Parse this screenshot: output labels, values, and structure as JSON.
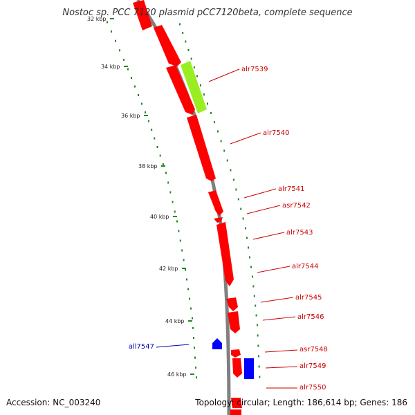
{
  "title": "Nostoc sp. PCC 7120 plasmid pCC7120beta, complete sequence",
  "footer": {
    "accession": "Accession: NC_003240",
    "summary": "Topology: circular; Length: 186,614 bp; Genes: 186"
  },
  "colors": {
    "forward_gene": "#ff0000",
    "reverse_gene": "#0000ff",
    "highlight_gene": "#99ee22",
    "backbone": "#808080",
    "tick_dots": "#228822",
    "forward_label": "#cc0000",
    "reverse_label": "#0000cc"
  },
  "scale": {
    "unit": "kbp",
    "labels": [
      "32 kbp",
      "34 kbp",
      "36 kbp",
      "38 kbp",
      "40 kbp",
      "42 kbp",
      "44 kbp",
      "46 kbp"
    ]
  },
  "genes": [
    {
      "label": "alr7539",
      "strand": "+",
      "highlight": true
    },
    {
      "label": "alr7540",
      "strand": "+"
    },
    {
      "label": "alr7541",
      "strand": "+"
    },
    {
      "label": "asr7542",
      "strand": "+"
    },
    {
      "label": "alr7543",
      "strand": "+"
    },
    {
      "label": "alr7544",
      "strand": "+"
    },
    {
      "label": "alr7545",
      "strand": "+"
    },
    {
      "label": "alr7546",
      "strand": "+"
    },
    {
      "label": "all7547",
      "strand": "-"
    },
    {
      "label": "asr7548",
      "strand": "+"
    },
    {
      "label": "alr7549",
      "strand": "+"
    },
    {
      "label": "alr7550",
      "strand": "+"
    }
  ]
}
